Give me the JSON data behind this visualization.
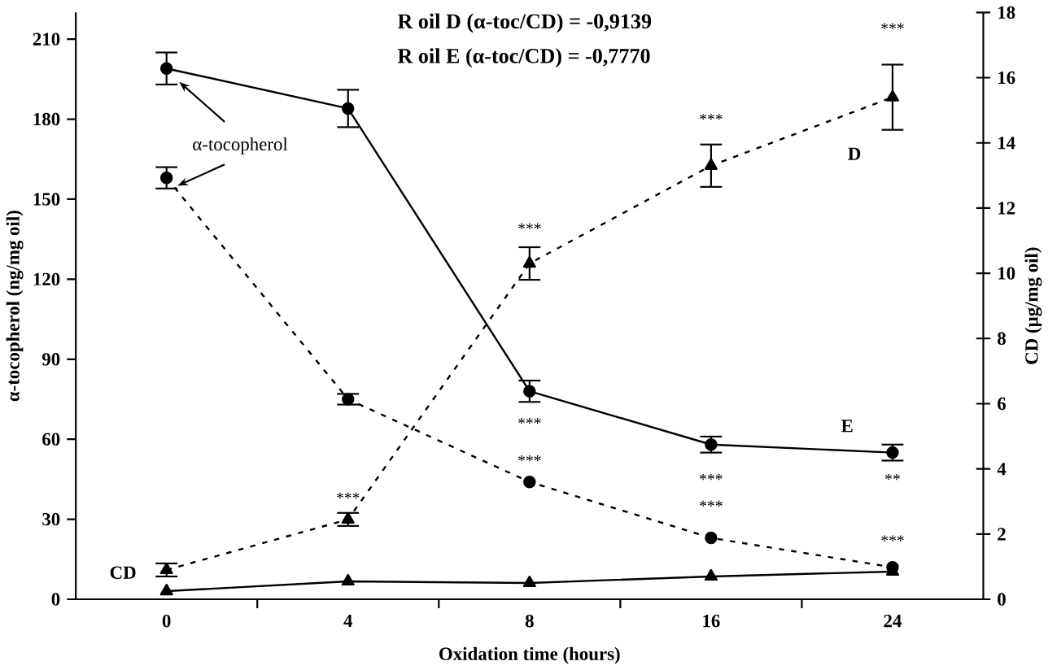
{
  "chart_data": {
    "type": "line",
    "categories": [
      "0",
      "4",
      "8",
      "16",
      "24"
    ],
    "xlabel": "Oxidation time (hours)",
    "ylabel": "α-tocopherol (ng/mg oil)",
    "y2label": "CD (µg/mg oil)",
    "ylim": [
      0,
      220
    ],
    "yticks": [
      0,
      30,
      60,
      90,
      120,
      150,
      180,
      210
    ],
    "y2lim": [
      0,
      18
    ],
    "y2ticks": [
      0,
      2,
      4,
      6,
      8,
      10,
      12,
      14,
      16,
      18
    ],
    "grid": false,
    "series": [
      {
        "color": "#000000",
        "marker": "circle",
        "line_style": "solid",
        "values": [
          199,
          184,
          78,
          58,
          55
        ],
        "errors": [
          6,
          7,
          4,
          3,
          3
        ]
      },
      {
        "color": "#000000",
        "marker": "circle",
        "line_style": "dashed",
        "values": [
          158,
          75,
          44,
          23,
          12
        ],
        "errors": [
          4,
          2,
          null,
          null,
          null
        ]
      },
      {
        "axis": "y2",
        "color": "#000000",
        "marker": "triangle",
        "line_style": "dashed",
        "values": [
          0.9,
          2.45,
          10.3,
          13.3,
          15.4
        ],
        "errors": [
          0.2,
          0.2,
          0.5,
          0.65,
          1.0
        ]
      },
      {
        "axis": "y2",
        "color": "#000000",
        "marker": "triangle",
        "line_style": "solid",
        "values": [
          0.25,
          0.55,
          0.5,
          0.7,
          0.85
        ],
        "errors": [
          null,
          null,
          null,
          null,
          null
        ]
      }
    ],
    "annotations": [
      "R oil D (α-toc/CD) = -0,9139",
      "R oil E (α-toc/CD) = -0,7770",
      {
        "text": "α-tocopherol",
        "x": "0",
        "y": 158
      },
      "CD",
      "D",
      "E",
      "***",
      "***",
      "***",
      "***",
      "***",
      "***",
      "***",
      "***",
      "**",
      "***"
    ]
  }
}
